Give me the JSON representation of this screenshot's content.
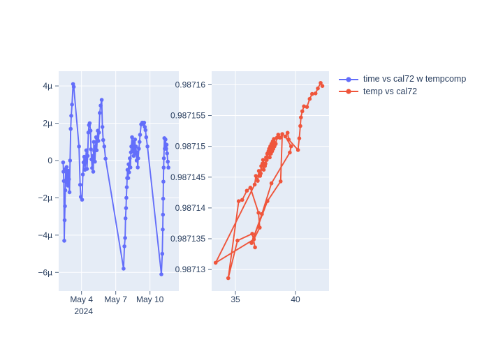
{
  "figure": {
    "background": "#ffffff",
    "plot_background": "#e5ecf6",
    "grid_color": "#ffffff",
    "text_color": "#2a3f5f",
    "tick_color": "#506784"
  },
  "legend": {
    "position": "top-right-outside",
    "items": [
      {
        "label": "time vs cal72 w tempcomp",
        "color": "#636efa"
      },
      {
        "label": "temp vs cal72",
        "color": "#ef553b"
      }
    ]
  },
  "chart_data": [
    {
      "type": "line",
      "mode": "lines+markers",
      "name": "time vs cal72 w tempcomp",
      "color": "#636efa",
      "x_unit": "date, May 2024 (decimal day)",
      "y_unit": "cal72 deviation (micro)",
      "grid": true,
      "xlim": [
        2.0,
        12.53
      ],
      "ylim": [
        -7.0,
        4.79
      ],
      "xticks": {
        "values": [
          4,
          7,
          10
        ],
        "labels": [
          "May 4",
          "May 7",
          "May 10"
        ],
        "sublabel": "2024"
      },
      "yticks": {
        "values": [
          4,
          2,
          0,
          -2,
          -4,
          -6
        ],
        "labels": [
          "4µ",
          "2µ",
          "0",
          "−2µ",
          "−4µ",
          "−6µ"
        ]
      },
      "x": [
        2.39,
        2.42,
        2.45,
        2.49,
        2.52,
        2.55,
        2.58,
        2.62,
        2.66,
        2.7,
        2.74,
        2.78,
        2.82,
        2.86,
        2.9,
        2.95,
        3.0,
        3.05,
        3.1,
        3.17,
        3.26,
        3.32,
        3.78,
        3.88,
        3.94,
        4.05,
        4.12,
        4.18,
        4.24,
        4.3,
        4.36,
        4.42,
        4.48,
        4.54,
        4.6,
        4.66,
        4.72,
        4.79,
        4.83,
        4.88,
        4.93,
        4.98,
        5.03,
        5.08,
        5.13,
        5.18,
        5.23,
        5.28,
        5.33,
        5.38,
        5.43,
        5.48,
        5.53,
        5.6,
        5.68,
        5.77,
        5.83,
        5.9,
        6.0,
        6.11,
        7.69,
        7.76,
        7.82,
        7.86,
        7.9,
        7.93,
        7.97,
        8.0,
        8.03,
        8.09,
        8.13,
        8.17,
        8.23,
        8.29,
        8.33,
        8.37,
        8.43,
        8.49,
        8.53,
        8.57,
        8.63,
        8.69,
        8.73,
        8.77,
        8.83,
        8.87,
        8.93,
        8.97,
        9.03,
        9.09,
        9.13,
        9.23,
        9.33,
        9.43,
        9.49,
        9.55,
        9.61,
        9.67,
        9.78,
        11.0,
        11.08,
        11.12,
        11.14,
        11.16,
        11.18,
        11.2,
        11.22,
        11.26,
        11.3,
        11.36,
        11.42,
        11.46,
        11.5,
        11.56,
        11.62
      ],
      "y": [
        -0.1,
        -0.6,
        -1.1,
        -4.3,
        -3.2,
        -2.45,
        -1.6,
        -0.45,
        -1.05,
        -0.35,
        -1.2,
        -0.7,
        -1.35,
        -0.55,
        -1.0,
        -1.7,
        0.0,
        1.7,
        2.4,
        3.0,
        4.1,
        3.95,
        0.75,
        -1.3,
        -1.95,
        -2.1,
        -0.75,
        -0.1,
        0.2,
        -0.5,
        -0.06,
        0.55,
        -0.45,
        0.25,
        1.5,
        1.9,
        2.0,
        1.6,
        0.6,
        0.06,
        -0.4,
        0.25,
        -0.6,
        1.0,
        0.5,
        -0.06,
        0.75,
        1.25,
        0.55,
        1.1,
        1.6,
        1.05,
        1.5,
        2.55,
        2.95,
        3.25,
        1.8,
        1.1,
        0.75,
        0.1,
        -5.8,
        -4.6,
        -4.15,
        -3.1,
        -2.55,
        -2.0,
        -1.43,
        -0.94,
        -0.5,
        -0.94,
        -0.2,
        -0.63,
        0.12,
        -0.37,
        0.44,
        0.75,
        1.25,
        0.5,
        1.0,
        0.25,
        0.63,
        1.13,
        0.38,
        0.75,
        0.0,
        0.44,
        -0.37,
        0.12,
        0.63,
        1.0,
        1.38,
        1.94,
        2.03,
        1.94,
        2.03,
        1.8,
        1.63,
        1.25,
        0.75,
        -6.1,
        -5.0,
        -3.7,
        -2.9,
        -2.05,
        -1.13,
        -0.38,
        0.12,
        1.2,
        0.63,
        1.13,
        0.63,
        0.85,
        0.38,
        -0.06,
        -0.38
      ]
    },
    {
      "type": "line",
      "mode": "lines+markers",
      "name": "temp vs cal72",
      "color": "#ef553b",
      "x_unit": "temp",
      "y_unit": "cal72",
      "grid": true,
      "xlim": [
        33.02,
        42.79
      ],
      "ylim": [
        0.9871265,
        0.9871622
      ],
      "xticks": {
        "values": [
          35,
          40
        ],
        "labels": [
          "35",
          "40"
        ]
      },
      "yticks": {
        "values": [
          0.98716,
          0.987155,
          0.98715,
          0.987145,
          0.98714,
          0.987135,
          0.98713
        ],
        "labels": [
          "0.98716",
          "0.987155",
          "0.98715",
          "0.987145",
          "0.98714",
          "0.987135",
          "0.98713"
        ]
      },
      "x": [
        36.63,
        36.4,
        35.17,
        34.4,
        35.27,
        35.56,
        35.95,
        36.24,
        36.92,
        37.02,
        36.53,
        33.35,
        36.6,
        36.7,
        36.85,
        36.95,
        37.05,
        37.15,
        37.1,
        37.25,
        37.35,
        37.3,
        37.45,
        37.55,
        37.5,
        37.65,
        37.6,
        37.75,
        37.85,
        37.8,
        37.95,
        37.9,
        38.05,
        38.0,
        38.15,
        38.1,
        38.25,
        38.2,
        38.35,
        38.45,
        38.56,
        38.7,
        38.9,
        38.76,
        37.66,
        36.34,
        37.2,
        38.0,
        39.53,
        39.63,
        39.15,
        39.34,
        39.43,
        40.21,
        40.31,
        40.4,
        40.45,
        40.56,
        40.7,
        40.95,
        41.18,
        41.38,
        41.67,
        41.86,
        42.09,
        42.24
      ],
      "y": [
        0.9871336,
        0.9871358,
        0.9871347,
        0.9871286,
        0.9871411,
        0.9871413,
        0.9871428,
        0.9871433,
        0.9871392,
        0.9871368,
        0.9871349,
        0.9871311,
        0.9871438,
        0.9871452,
        0.9871444,
        0.987146,
        0.9871452,
        0.9871468,
        0.9871456,
        0.9871472,
        0.9871462,
        0.9871478,
        0.9871468,
        0.9871482,
        0.9871472,
        0.9871488,
        0.9871478,
        0.9871492,
        0.9871482,
        0.9871496,
        0.9871488,
        0.98715,
        0.9871492,
        0.9871504,
        0.9871496,
        0.9871508,
        0.98715,
        0.9871512,
        0.9871504,
        0.9871514,
        0.9871519,
        0.9871514,
        0.987152,
        0.9871443,
        0.9871411,
        0.9871343,
        0.987139,
        0.987144,
        0.987149,
        0.98715,
        0.9871516,
        0.9871522,
        0.9871511,
        0.9871494,
        0.9871513,
        0.9871533,
        0.9871547,
        0.9871557,
        0.9871565,
        0.9871564,
        0.9871577,
        0.9871585,
        0.9871586,
        0.9871594,
        0.9871603,
        0.9871598
      ]
    }
  ]
}
